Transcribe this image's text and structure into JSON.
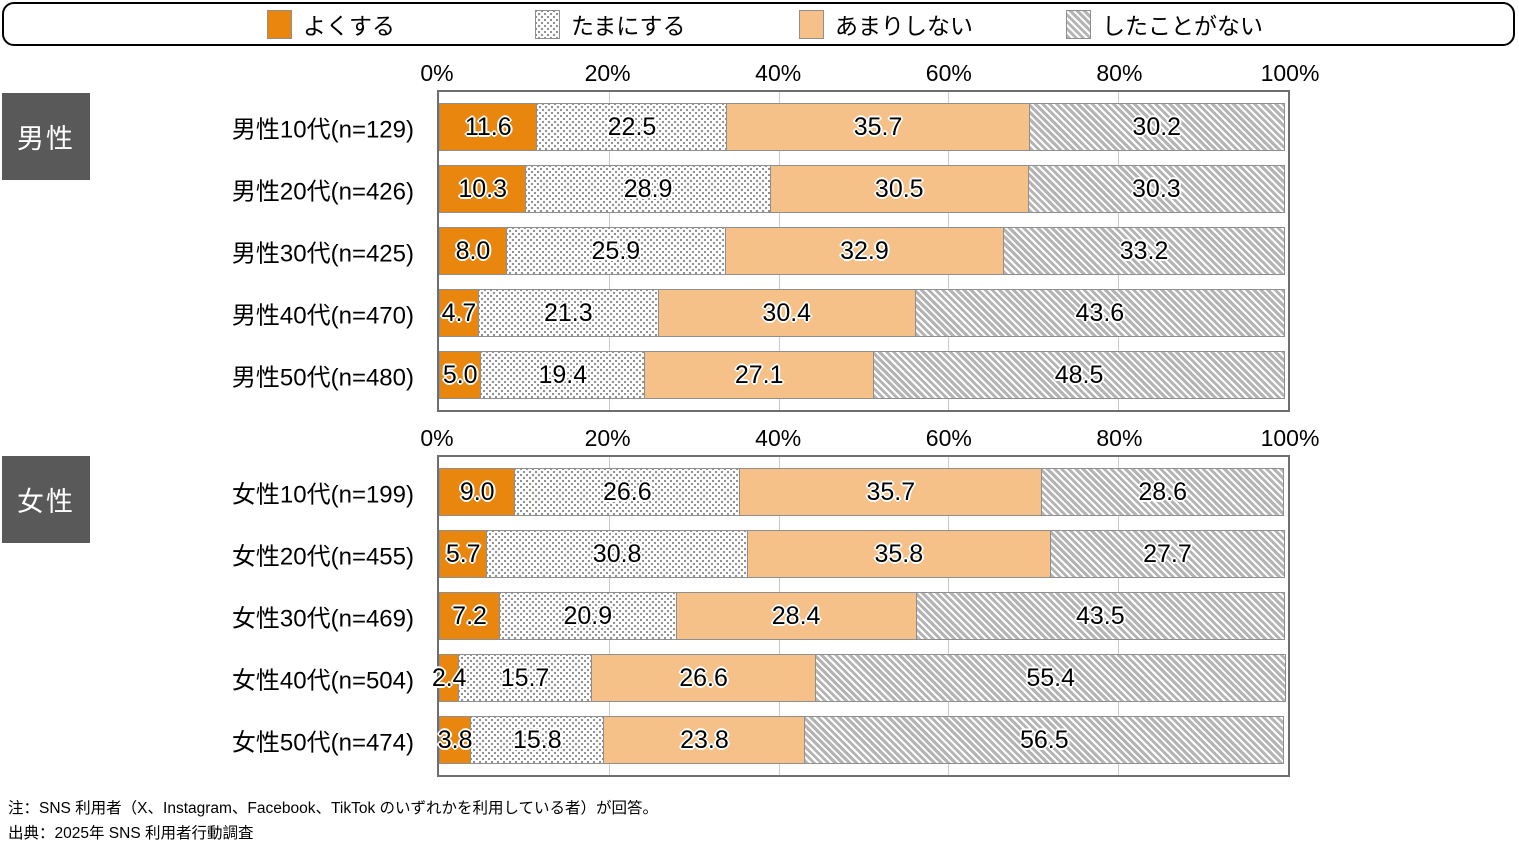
{
  "legend": {
    "items": [
      {
        "label": "よくする",
        "swatch": "solid-orange"
      },
      {
        "label": "たまにする",
        "swatch": "dotted"
      },
      {
        "label": "あまりしない",
        "swatch": "solid-peach"
      },
      {
        "label": "したことがない",
        "swatch": "hatched"
      }
    ]
  },
  "colors": {
    "orange": "#E8860D",
    "peach": "#F5C189",
    "section_box": "#595959",
    "gridline": "#C9C9C9",
    "frame": "#6E6E6E",
    "segment_border": "#8F8F8F"
  },
  "axis": {
    "ticks": [
      "0%",
      "20%",
      "40%",
      "60%",
      "80%",
      "100%"
    ]
  },
  "chart_data": [
    {
      "type": "bar",
      "stacked": true,
      "orientation": "horizontal",
      "group": "男性",
      "categories": [
        "男性10代(n=129)",
        "男性20代(n=426)",
        "男性30代(n=425)",
        "男性40代(n=470)",
        "男性50代(n=480)"
      ],
      "series": [
        {
          "name": "よくする",
          "values": [
            11.6,
            10.3,
            8.0,
            4.7,
            5.0
          ]
        },
        {
          "name": "たまにする",
          "values": [
            22.5,
            28.9,
            25.9,
            21.3,
            19.4
          ]
        },
        {
          "name": "あまりしない",
          "values": [
            35.7,
            30.5,
            32.9,
            30.4,
            27.1
          ]
        },
        {
          "name": "したことがない",
          "values": [
            30.2,
            30.3,
            33.2,
            43.6,
            48.5
          ]
        }
      ],
      "xlim": [
        0,
        100
      ],
      "grid": "vertical",
      "legend_position": "top"
    },
    {
      "type": "bar",
      "stacked": true,
      "orientation": "horizontal",
      "group": "女性",
      "categories": [
        "女性10代(n=199)",
        "女性20代(n=455)",
        "女性30代(n=469)",
        "女性40代(n=504)",
        "女性50代(n=474)"
      ],
      "series": [
        {
          "name": "よくする",
          "values": [
            9.0,
            5.7,
            7.2,
            2.4,
            3.8
          ]
        },
        {
          "name": "たまにする",
          "values": [
            26.6,
            30.8,
            20.9,
            15.7,
            15.8
          ]
        },
        {
          "name": "あまりしない",
          "values": [
            35.7,
            35.8,
            28.4,
            26.6,
            23.8
          ]
        },
        {
          "name": "したことがない",
          "values": [
            28.6,
            27.7,
            43.5,
            55.4,
            56.5
          ]
        }
      ],
      "xlim": [
        0,
        100
      ],
      "grid": "vertical",
      "legend_position": "top"
    }
  ],
  "notes": {
    "line1": "注：SNS 利用者（X、Instagram、Facebook、TikTok のいずれかを利用している者）が回答。",
    "line2": "出典：2025年 SNS 利用者行動調査"
  }
}
